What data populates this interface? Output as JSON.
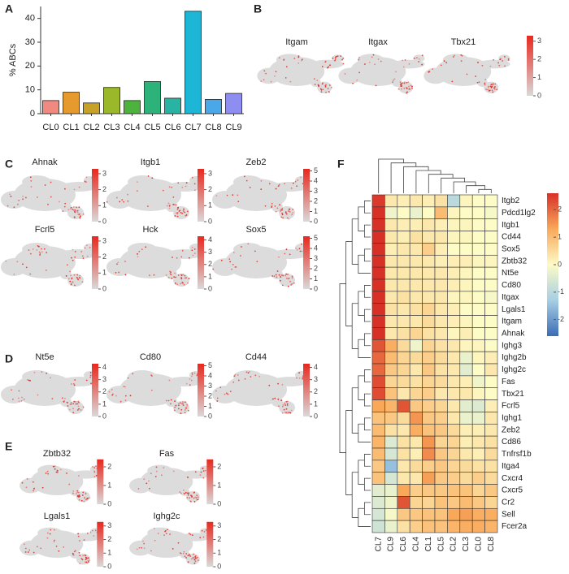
{
  "chart_data": [
    {
      "type": "bar",
      "label": "A",
      "ylabel": "% ABCs",
      "categories": [
        "CL0",
        "CL1",
        "CL2",
        "CL3",
        "CL4",
        "CL5",
        "CL6",
        "CL7",
        "CL8",
        "CL9"
      ],
      "values": [
        5.5,
        9,
        4.5,
        11,
        5.5,
        13.5,
        6.5,
        43,
        6,
        8.5
      ],
      "colors": [
        "#f08a80",
        "#e69a2e",
        "#c8a226",
        "#9bb82a",
        "#4cb43c",
        "#2db37a",
        "#28b3a3",
        "#1eb6d6",
        "#4aa8e8",
        "#8d8ef0"
      ],
      "ylim": [
        0,
        45
      ],
      "yticks": [
        0,
        10,
        20,
        30,
        40
      ]
    },
    {
      "type": "feature",
      "label": "B",
      "plots": [
        {
          "title": "Itgam"
        },
        {
          "title": "Itgax"
        },
        {
          "title": "Tbx21"
        }
      ],
      "ylim": [
        0,
        3.3
      ],
      "yticks": [
        0,
        1,
        2,
        3
      ]
    },
    {
      "type": "feature",
      "label": "C",
      "plots": [
        {
          "title": "Ahnak",
          "ylim": [
            0,
            3.3
          ],
          "yticks": [
            0,
            1,
            2,
            3
          ]
        },
        {
          "title": "Itgb1",
          "ylim": [
            0,
            3.3
          ],
          "yticks": [
            0,
            1,
            2,
            3
          ]
        },
        {
          "title": "Zeb2",
          "ylim": [
            0,
            5.2
          ],
          "yticks": [
            0,
            1,
            2,
            3,
            4,
            5
          ]
        },
        {
          "title": "Fcrl5",
          "ylim": [
            0,
            3.3
          ],
          "yticks": [
            0,
            1,
            2,
            3
          ]
        },
        {
          "title": "Hck",
          "ylim": [
            0,
            4.3
          ],
          "yticks": [
            0,
            1,
            2,
            3,
            4
          ]
        },
        {
          "title": "Sox5",
          "ylim": [
            0,
            5.2
          ],
          "yticks": [
            0,
            1,
            2,
            3,
            4,
            5
          ]
        }
      ]
    },
    {
      "type": "feature",
      "label": "D",
      "plots": [
        {
          "title": "Nt5e",
          "ylim": [
            0,
            4.3
          ],
          "yticks": [
            0,
            1,
            2,
            3,
            4
          ]
        },
        {
          "title": "Cd80",
          "ylim": [
            0,
            5.2
          ],
          "yticks": [
            0,
            1,
            2,
            3,
            4,
            5
          ]
        },
        {
          "title": "Cd44",
          "ylim": [
            0,
            4.3
          ],
          "yticks": [
            0,
            1,
            2,
            3,
            4
          ]
        }
      ]
    },
    {
      "type": "feature",
      "label": "E",
      "plots": [
        {
          "title": "Zbtb32",
          "ylim": [
            0,
            2.4
          ],
          "yticks": [
            0,
            1,
            2
          ]
        },
        {
          "title": "Fas",
          "ylim": [
            0,
            2.4
          ],
          "yticks": [
            0,
            1,
            2
          ]
        },
        {
          "title": "Lgals1",
          "ylim": [
            0,
            3.3
          ],
          "yticks": [
            0,
            1,
            2,
            3
          ]
        },
        {
          "title": "Ighg2c",
          "ylim": [
            0,
            3.3
          ],
          "yticks": [
            0,
            1,
            2,
            3
          ]
        }
      ]
    },
    {
      "type": "heatmap",
      "label": "F",
      "categories": [
        "CL7",
        "CL9",
        "CL6",
        "CL4",
        "CL1",
        "CL5",
        "CL2",
        "CL3",
        "CL0",
        "CL8"
      ],
      "rows": [
        "Itgb2",
        "Pdcd1lg2",
        "Itgb1",
        "Cd44",
        "Sox5",
        "Zbtb32",
        "Nt5e",
        "Cd80",
        "Itgax",
        "Lgals1",
        "Itgam",
        "Ahnak",
        "Ighg3",
        "Ighg2b",
        "Ighg2c",
        "Fas",
        "Tbx21",
        "Fcrl5",
        "Ighg1",
        "Zeb2",
        "Cd86",
        "Tnfrsf1b",
        "Itga4",
        "Cxcr4",
        "Cxcr5",
        "Cr2",
        "Sell",
        "Fcer2a"
      ],
      "values": [
        [
          2.5,
          0.3,
          0.2,
          0.3,
          0.2,
          0.4,
          -1.0,
          0.1,
          0,
          0
        ],
        [
          2.6,
          -0.2,
          0,
          -0.3,
          0,
          1.0,
          0.1,
          0,
          0,
          -0.1
        ],
        [
          2.7,
          0.3,
          0.2,
          0.2,
          0.3,
          0.2,
          0.1,
          0.1,
          0,
          0
        ],
        [
          2.7,
          0.3,
          0.2,
          0.4,
          0.3,
          0.3,
          0.1,
          0.1,
          0,
          0
        ],
        [
          2.7,
          0.2,
          0.3,
          0.3,
          0.7,
          0.2,
          0,
          0,
          0,
          0
        ],
        [
          2.7,
          0.3,
          0.3,
          0.3,
          0.3,
          0.2,
          0.2,
          0.2,
          0.1,
          0.1
        ],
        [
          2.7,
          0.3,
          0.3,
          0.3,
          0.3,
          0.3,
          0.2,
          0.1,
          0,
          0
        ],
        [
          2.7,
          0.3,
          0.3,
          0.3,
          0.3,
          0.3,
          0.2,
          0.1,
          0,
          0
        ],
        [
          2.7,
          0.3,
          0.4,
          0.3,
          0.3,
          0.3,
          0.1,
          0.1,
          0,
          -0.1
        ],
        [
          2.6,
          0.4,
          0.3,
          0.4,
          0.6,
          0.3,
          0.2,
          0,
          0,
          0
        ],
        [
          2.6,
          0.3,
          0.3,
          0.3,
          0.5,
          0.3,
          0.2,
          0.1,
          0,
          0
        ],
        [
          2.6,
          0.3,
          0.4,
          0.6,
          0.4,
          0.3,
          0.1,
          0.2,
          0,
          0
        ],
        [
          2.2,
          1.2,
          0.5,
          -0.2,
          0.6,
          0.4,
          0.3,
          0.1,
          0.1,
          0
        ],
        [
          2.0,
          1.0,
          0.6,
          0.5,
          0.7,
          0.5,
          0.3,
          -0.3,
          0.1,
          0.2
        ],
        [
          2.0,
          0.8,
          0.6,
          0.3,
          0.8,
          0.4,
          0.3,
          -0.4,
          0,
          0.3
        ],
        [
          2.3,
          0.6,
          0.5,
          0.4,
          0.6,
          0.5,
          0.3,
          0.2,
          -0.2,
          0
        ],
        [
          2.3,
          0.9,
          0.3,
          0.6,
          0.7,
          0.3,
          0.3,
          0.3,
          0.1,
          0
        ],
        [
          1.3,
          1.1,
          2.2,
          0.8,
          0.7,
          0.6,
          0.3,
          -0.4,
          -0.5,
          0.2
        ],
        [
          0.9,
          0.8,
          0.5,
          1.5,
          0.8,
          0.7,
          0.3,
          -0.3,
          -0.3,
          0.3
        ],
        [
          1.0,
          0.4,
          0.3,
          1.2,
          0.9,
          0.8,
          0.5,
          0.2,
          0.2,
          0.3
        ],
        [
          1.1,
          -0.5,
          0.4,
          0.3,
          1.5,
          0.6,
          0.6,
          0.2,
          0.3,
          0.4
        ],
        [
          1.0,
          -0.6,
          0.4,
          0.2,
          1.6,
          0.8,
          0.6,
          0.3,
          0.2,
          0.5
        ],
        [
          0.8,
          -1.5,
          0.3,
          0.5,
          0.7,
          0.8,
          0.6,
          0.5,
          0.4,
          0.4
        ],
        [
          0.9,
          -0.6,
          0.3,
          0.3,
          1.4,
          0.8,
          0.7,
          0.5,
          0.7,
          0.5
        ],
        [
          -0.4,
          -0.3,
          1.3,
          0.7,
          0.8,
          0.8,
          0.9,
          0.9,
          0.6,
          0.8
        ],
        [
          -0.5,
          -0.2,
          2.2,
          0.6,
          0.6,
          0.9,
          0.8,
          1.0,
          0.8,
          0.6
        ],
        [
          -0.6,
          -0.1,
          0.8,
          0.8,
          0.9,
          0.9,
          1.3,
          1.4,
          1.2,
          1.2
        ],
        [
          -0.7,
          -0.3,
          0.4,
          0.7,
          0.9,
          0.9,
          1.1,
          1.2,
          1.2,
          1.1
        ]
      ],
      "colors": [
        "#3b6cb5",
        "#a6cfe4",
        "#fdfbc6",
        "#f9a85a",
        "#d73027"
      ],
      "ylim": [
        -2.6,
        2.6
      ],
      "yticks": [
        -2,
        -1,
        0,
        1,
        2
      ]
    }
  ]
}
